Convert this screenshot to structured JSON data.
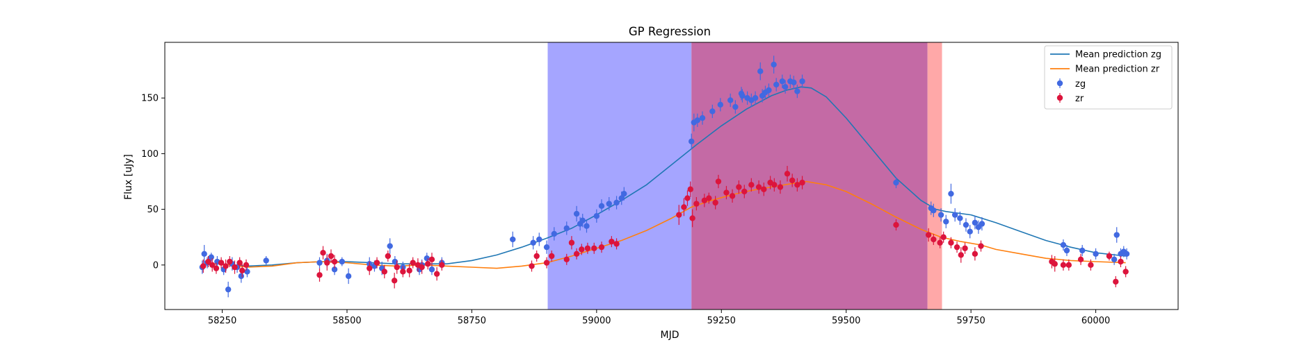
{
  "chart_data": {
    "type": "scatter",
    "title": "GP Regression",
    "xlabel": "MJD",
    "ylabel": "Flux [uJy]",
    "xlim": [
      58135,
      60165
    ],
    "ylim": [
      -40,
      200
    ],
    "xticks": [
      58250,
      58500,
      58750,
      59000,
      59250,
      59500,
      59750,
      60000
    ],
    "yticks": [
      0,
      50,
      100,
      150
    ],
    "legend_position": "top-right",
    "shaded_regions": [
      {
        "x0": 58902,
        "x1": 59190,
        "color": "#a5a5ff"
      },
      {
        "x0": 59190,
        "x1": 59663,
        "color": "#c46aa5"
      },
      {
        "x0": 59663,
        "x1": 59692,
        "color": "#ffa8a8"
      }
    ],
    "series": [
      {
        "name": "Mean prediction zg",
        "kind": "line",
        "color": "#1f77b4",
        "x": [
          58210,
          58240,
          58270,
          58300,
          58350,
          58400,
          58450,
          58500,
          58550,
          58600,
          58650,
          58700,
          58750,
          58800,
          58850,
          58900,
          58950,
          59000,
          59050,
          59100,
          59150,
          59200,
          59250,
          59300,
          59350,
          59380,
          59410,
          59430,
          59460,
          59500,
          59550,
          59600,
          59650,
          59680,
          59700,
          59750,
          59800,
          59850,
          59900,
          59950,
          60000,
          60060
        ],
        "y": [
          0,
          1,
          0,
          -1,
          0,
          2,
          3,
          3,
          2,
          1,
          1,
          1,
          4,
          9,
          16,
          24,
          33,
          45,
          58,
          72,
          90,
          108,
          125,
          140,
          152,
          157,
          160,
          159,
          151,
          132,
          105,
          78,
          58,
          50,
          48,
          45,
          38,
          30,
          22,
          16,
          11,
          8
        ]
      },
      {
        "name": "Mean prediction zr",
        "kind": "line",
        "color": "#ff7f0e",
        "x": [
          58210,
          58240,
          58270,
          58300,
          58350,
          58400,
          58450,
          58500,
          58550,
          58600,
          58650,
          58700,
          58750,
          58800,
          58850,
          58900,
          58950,
          59000,
          59050,
          59100,
          59150,
          59190,
          59230,
          59270,
          59310,
          59350,
          59390,
          59420,
          59460,
          59500,
          59550,
          59600,
          59650,
          59690,
          59730,
          59770,
          59800,
          59850,
          59900,
          59950,
          60000,
          60060
        ],
        "y": [
          1,
          1,
          0,
          -2,
          -1,
          2,
          3,
          2,
          0,
          -1,
          0,
          -1,
          -2,
          -3,
          -1,
          2,
          8,
          15,
          22,
          31,
          42,
          52,
          58,
          63,
          67,
          70,
          73,
          75,
          72,
          66,
          55,
          43,
          32,
          25,
          21,
          18,
          14,
          10,
          6,
          4,
          3,
          2
        ]
      },
      {
        "name": "zg",
        "kind": "errorbar",
        "color": "#4169e1",
        "points": [
          [
            58210,
            -2,
            6
          ],
          [
            58214,
            10,
            8
          ],
          [
            58220,
            2,
            5
          ],
          [
            58228,
            7,
            4
          ],
          [
            58240,
            3,
            5
          ],
          [
            58253,
            -4,
            5
          ],
          [
            58262,
            -22,
            7
          ],
          [
            58270,
            1,
            6
          ],
          [
            58280,
            -2,
            5
          ],
          [
            58288,
            -10,
            6
          ],
          [
            58300,
            -6,
            5
          ],
          [
            58338,
            4,
            4
          ],
          [
            58445,
            2,
            5
          ],
          [
            58460,
            4,
            6
          ],
          [
            58475,
            -4,
            5
          ],
          [
            58490,
            3,
            4
          ],
          [
            58503,
            -10,
            7
          ],
          [
            58545,
            1,
            6
          ],
          [
            58555,
            -1,
            5
          ],
          [
            58570,
            -3,
            6
          ],
          [
            58586,
            17,
            7
          ],
          [
            58596,
            3,
            5
          ],
          [
            58612,
            -2,
            5
          ],
          [
            58645,
            -4,
            5
          ],
          [
            58650,
            0,
            5
          ],
          [
            58660,
            6,
            5
          ],
          [
            58670,
            -4,
            5
          ],
          [
            58690,
            2,
            5
          ],
          [
            58832,
            23,
            7
          ],
          [
            58873,
            20,
            6
          ],
          [
            58885,
            23,
            6
          ],
          [
            58900,
            16,
            6
          ],
          [
            58915,
            28,
            6
          ],
          [
            58940,
            33,
            6
          ],
          [
            58960,
            46,
            7
          ],
          [
            58967,
            37,
            6
          ],
          [
            58972,
            40,
            6
          ],
          [
            58980,
            35,
            6
          ],
          [
            59000,
            44,
            6
          ],
          [
            59010,
            53,
            6
          ],
          [
            59025,
            55,
            6
          ],
          [
            59040,
            56,
            6
          ],
          [
            59050,
            60,
            6
          ],
          [
            59055,
            64,
            6
          ],
          [
            59190,
            111,
            7
          ],
          [
            59195,
            128,
            8
          ],
          [
            59202,
            130,
            6
          ],
          [
            59212,
            132,
            6
          ],
          [
            59232,
            138,
            6
          ],
          [
            59248,
            144,
            6
          ],
          [
            59268,
            148,
            6
          ],
          [
            59278,
            142,
            6
          ],
          [
            59290,
            154,
            6
          ],
          [
            59292,
            152,
            6
          ],
          [
            59302,
            150,
            6
          ],
          [
            59310,
            148,
            6
          ],
          [
            59318,
            150,
            6
          ],
          [
            59328,
            174,
            8
          ],
          [
            59332,
            152,
            6
          ],
          [
            59338,
            155,
            6
          ],
          [
            59345,
            157,
            6
          ],
          [
            59355,
            180,
            8
          ],
          [
            59360,
            162,
            6
          ],
          [
            59372,
            165,
            6
          ],
          [
            59378,
            160,
            6
          ],
          [
            59388,
            165,
            6
          ],
          [
            59395,
            164,
            6
          ],
          [
            59402,
            156,
            6
          ],
          [
            59412,
            165,
            6
          ],
          [
            59600,
            74,
            5
          ],
          [
            59670,
            51,
            6
          ],
          [
            59675,
            49,
            6
          ],
          [
            59690,
            45,
            6
          ],
          [
            59700,
            39,
            6
          ],
          [
            59710,
            64,
            9
          ],
          [
            59718,
            45,
            6
          ],
          [
            59728,
            42,
            6
          ],
          [
            59740,
            36,
            6
          ],
          [
            59748,
            30,
            6
          ],
          [
            59758,
            38,
            6
          ],
          [
            59765,
            34,
            6
          ],
          [
            59772,
            37,
            6
          ],
          [
            59935,
            18,
            5
          ],
          [
            59942,
            13,
            5
          ],
          [
            59973,
            13,
            5
          ],
          [
            60000,
            10,
            5
          ],
          [
            60037,
            5,
            5
          ],
          [
            60042,
            27,
            7
          ],
          [
            60050,
            10,
            5
          ],
          [
            60056,
            12,
            5
          ],
          [
            60062,
            10,
            5
          ]
        ]
      },
      {
        "name": "zr",
        "kind": "errorbar",
        "color": "#dc143c",
        "points": [
          [
            58212,
            -1,
            6
          ],
          [
            58222,
            3,
            5
          ],
          [
            58230,
            0,
            6
          ],
          [
            58238,
            -3,
            5
          ],
          [
            58248,
            2,
            5
          ],
          [
            58257,
            -1,
            6
          ],
          [
            58265,
            3,
            5
          ],
          [
            58275,
            -2,
            6
          ],
          [
            58285,
            2,
            5
          ],
          [
            58290,
            -5,
            6
          ],
          [
            58298,
            0,
            5
          ],
          [
            58445,
            -9,
            6
          ],
          [
            58452,
            11,
            6
          ],
          [
            58460,
            2,
            7
          ],
          [
            58468,
            8,
            6
          ],
          [
            58475,
            3,
            6
          ],
          [
            58545,
            -3,
            6
          ],
          [
            58560,
            2,
            5
          ],
          [
            58575,
            -6,
            6
          ],
          [
            58582,
            8,
            5
          ],
          [
            58595,
            -14,
            7
          ],
          [
            58600,
            -2,
            6
          ],
          [
            58612,
            -6,
            5
          ],
          [
            58625,
            -5,
            6
          ],
          [
            58632,
            2,
            5
          ],
          [
            58642,
            0,
            6
          ],
          [
            58650,
            -2,
            6
          ],
          [
            58662,
            1,
            5
          ],
          [
            58670,
            5,
            6
          ],
          [
            58680,
            -8,
            6
          ],
          [
            58690,
            0,
            5
          ],
          [
            58870,
            -1,
            5
          ],
          [
            58880,
            8,
            5
          ],
          [
            58900,
            2,
            5
          ],
          [
            58910,
            8,
            5
          ],
          [
            58940,
            5,
            5
          ],
          [
            58950,
            20,
            6
          ],
          [
            58960,
            10,
            5
          ],
          [
            58970,
            14,
            5
          ],
          [
            58982,
            15,
            5
          ],
          [
            58995,
            15,
            5
          ],
          [
            59010,
            16,
            5
          ],
          [
            59030,
            21,
            5
          ],
          [
            59040,
            19,
            5
          ],
          [
            59165,
            45,
            9
          ],
          [
            59175,
            52,
            8
          ],
          [
            59182,
            60,
            7
          ],
          [
            59188,
            68,
            7
          ],
          [
            59192,
            42,
            8
          ],
          [
            59200,
            55,
            6
          ],
          [
            59216,
            58,
            6
          ],
          [
            59225,
            60,
            5
          ],
          [
            59238,
            56,
            6
          ],
          [
            59244,
            75,
            6
          ],
          [
            59260,
            65,
            6
          ],
          [
            59272,
            62,
            6
          ],
          [
            59285,
            70,
            6
          ],
          [
            59296,
            66,
            6
          ],
          [
            59310,
            72,
            6
          ],
          [
            59325,
            70,
            6
          ],
          [
            59335,
            68,
            6
          ],
          [
            59348,
            74,
            6
          ],
          [
            59356,
            72,
            6
          ],
          [
            59368,
            70,
            6
          ],
          [
            59382,
            82,
            7
          ],
          [
            59392,
            76,
            6
          ],
          [
            59402,
            72,
            6
          ],
          [
            59412,
            74,
            6
          ],
          [
            59600,
            36,
            5
          ],
          [
            59665,
            27,
            6
          ],
          [
            59675,
            23,
            5
          ],
          [
            59688,
            20,
            5
          ],
          [
            59695,
            25,
            5
          ],
          [
            59710,
            20,
            5
          ],
          [
            59722,
            16,
            5
          ],
          [
            59730,
            9,
            7
          ],
          [
            59738,
            15,
            5
          ],
          [
            59758,
            10,
            6
          ],
          [
            59770,
            17,
            5
          ],
          [
            59912,
            3,
            6
          ],
          [
            59918,
            1,
            7
          ],
          [
            59935,
            0,
            5
          ],
          [
            59946,
            0,
            5
          ],
          [
            59970,
            5,
            5
          ],
          [
            59990,
            0,
            5
          ],
          [
            60027,
            8,
            4
          ],
          [
            60040,
            -15,
            5
          ],
          [
            60050,
            3,
            5
          ],
          [
            60060,
            -6,
            5
          ]
        ]
      }
    ]
  }
}
